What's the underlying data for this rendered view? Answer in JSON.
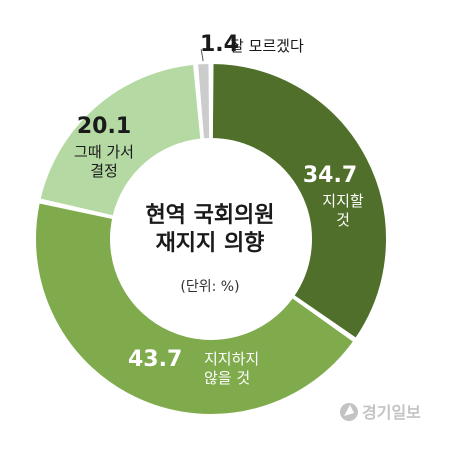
{
  "chart_data": {
    "type": "donut",
    "title": "현역 국회의원\n재지지 의향",
    "unit_label": "(단위: %)",
    "slices": [
      {
        "value": 34.7,
        "value_label": "34.7",
        "label_lines": [
          "지지할",
          "것"
        ],
        "color": "#4f6f2a",
        "value_color": "#ffffff",
        "label_color": "#ffffff"
      },
      {
        "value": 43.7,
        "value_label": "43.7",
        "label_lines": [
          "지지하지",
          "않을 것"
        ],
        "color": "#7fab4c",
        "value_color": "#ffffff",
        "label_color": "#ffffff"
      },
      {
        "value": 20.1,
        "value_label": "20.1",
        "label_lines": [
          "그때 가서",
          "결정"
        ],
        "color": "#b5d9a3",
        "value_color": "#1a1a1a",
        "label_color": "#1a1a1a"
      },
      {
        "value": 1.4,
        "value_label": "1.4",
        "label_lines": [
          "잘 모르겠다"
        ],
        "color": "#cccccc",
        "value_color": "#1a1a1a",
        "label_color": "#1a1a1a"
      }
    ]
  },
  "watermark": {
    "text": "경기일보",
    "icon": "newspaper-logo-icon"
  }
}
